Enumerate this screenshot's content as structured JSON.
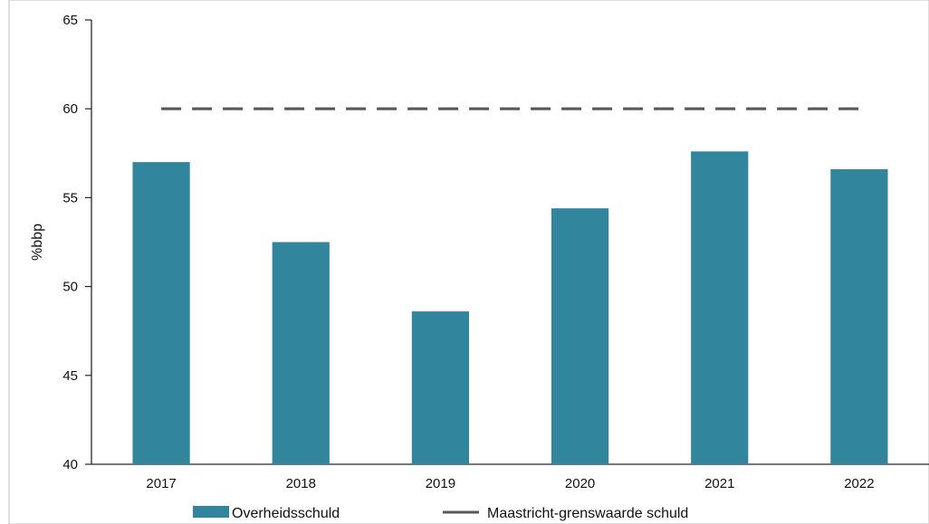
{
  "header": {
    "cut_title": ""
  },
  "chart_data": {
    "type": "bar",
    "title": "",
    "xlabel": "",
    "ylabel": "%bbp",
    "ylim": [
      40,
      65
    ],
    "yticks": [
      40,
      45,
      50,
      55,
      60,
      65
    ],
    "grid": false,
    "legend_position": "bottom",
    "categories": [
      "2017",
      "2018",
      "2019",
      "2020",
      "2021",
      "2022"
    ],
    "series": [
      {
        "name": "Overheidsschuld",
        "type": "bar",
        "color": "#31859c",
        "values": [
          57.0,
          52.5,
          48.6,
          54.4,
          57.6,
          56.6
        ]
      },
      {
        "name": "Maastricht-grenswaarde schuld",
        "type": "line",
        "style": "dashed",
        "color": "#595959",
        "values": [
          60,
          60,
          60,
          60,
          60,
          60
        ]
      }
    ]
  }
}
